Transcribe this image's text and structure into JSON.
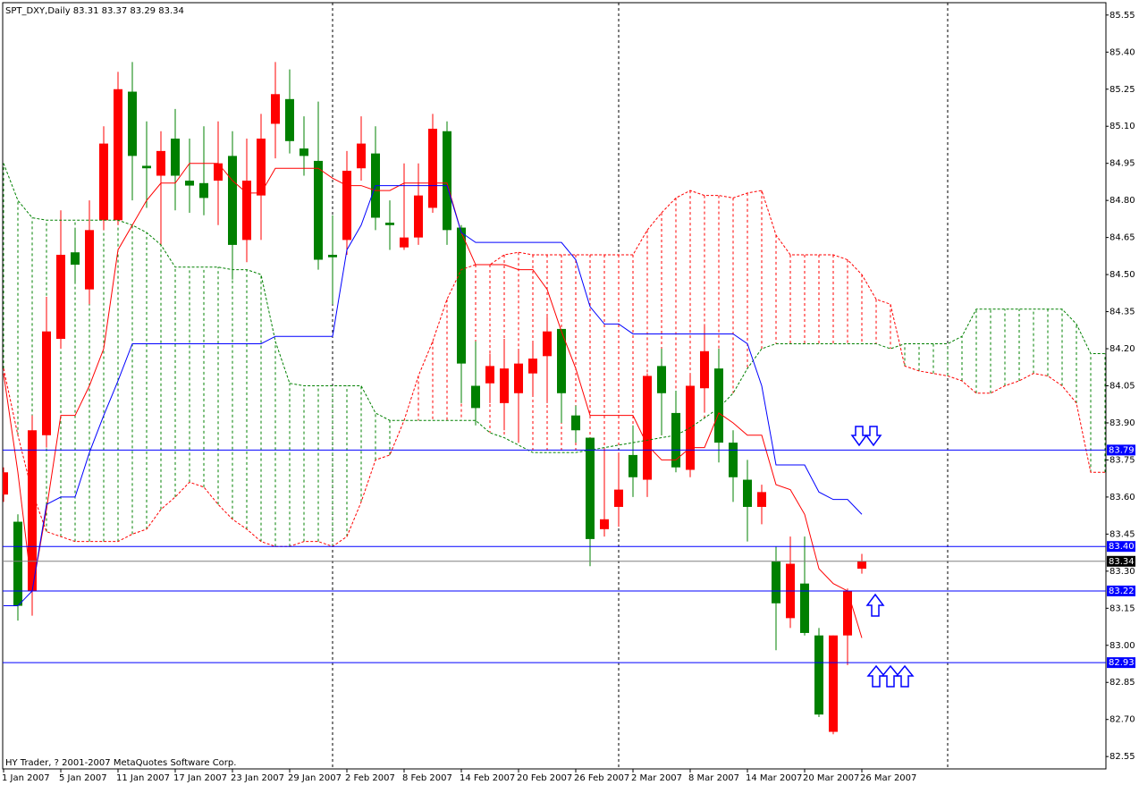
{
  "chart_data": {
    "type": "candlestick",
    "title": "SPT_DXY,Daily  83.31 83.37 83.29 83.34",
    "footer": "HY Trader, ? 2001-2007 MetaQuotes Software Corp.",
    "categories": [
      "1 Jan 2007",
      null,
      null,
      null,
      "5 Jan 2007",
      null,
      null,
      null,
      "11 Jan 2007",
      null,
      null,
      null,
      "17 Jan 2007",
      null,
      null,
      null,
      "23 Jan 2007",
      null,
      null,
      null,
      "29 Jan 2007",
      null,
      null,
      null,
      "2 Feb 2007",
      null,
      null,
      null,
      "8 Feb 2007",
      null,
      null,
      null,
      "14 Feb 2007",
      null,
      null,
      null,
      "20 Feb 2007",
      null,
      null,
      null,
      "26 Feb 2007",
      null,
      null,
      null,
      "2 Mar 2007",
      null,
      null,
      null,
      "8 Mar 2007",
      null,
      null,
      null,
      "14 Mar 2007",
      null,
      null,
      null,
      "20 Mar 2007",
      null,
      null,
      null,
      "26 Mar 2007",
      null,
      null,
      null,
      null,
      null,
      null,
      null,
      null,
      null,
      null,
      null,
      null,
      null,
      null,
      null,
      null,
      null
    ],
    "open": [
      83.61,
      83.5,
      83.22,
      83.85,
      84.24,
      84.59,
      84.44,
      84.72,
      84.72,
      85.24,
      84.94,
      84.9,
      85.05,
      84.88,
      84.87,
      84.88,
      84.98,
      84.64,
      84.82,
      85.11,
      85.21,
      85.01,
      84.96,
      84.58,
      84.64,
      84.93,
      84.99,
      84.71,
      84.61,
      84.65,
      84.77,
      85.08,
      84.69,
      84.05,
      84.06,
      83.98,
      84.02,
      84.1,
      84.17,
      84.28,
      83.93,
      83.84,
      83.47,
      83.56,
      83.77,
      83.67,
      84.13,
      83.94,
      83.71,
      84.04,
      84.12,
      83.82,
      83.67,
      83.56,
      83.34,
      83.11,
      83.25,
      83.04,
      82.65,
      83.04,
      83.31,
      null,
      null,
      null,
      null,
      null,
      null,
      null,
      null,
      null,
      null,
      null,
      null,
      null,
      null,
      null,
      null,
      null
    ],
    "high": [
      83.72,
      83.53,
      83.93,
      84.41,
      84.76,
      84.68,
      84.8,
      85.1,
      85.32,
      85.36,
      85.12,
      85.08,
      85.17,
      85.05,
      85.1,
      85.12,
      85.08,
      85.05,
      85.15,
      85.36,
      85.33,
      85.14,
      85.2,
      84.74,
      85.0,
      85.14,
      85.1,
      84.8,
      84.95,
      84.95,
      85.15,
      85.12,
      84.7,
      84.23,
      84.18,
      84.24,
      84.2,
      84.23,
      84.33,
      84.28,
      83.97,
      83.84,
      83.8,
      83.78,
      83.89,
      84.1,
      84.2,
      84.03,
      84.1,
      84.3,
      84.2,
      83.87,
      83.75,
      83.65,
      83.4,
      83.44,
      83.44,
      83.07,
      83.04,
      83.23,
      83.37,
      null,
      null,
      null,
      null,
      null,
      null,
      null,
      null,
      null,
      null,
      null,
      null,
      null,
      null,
      null,
      null,
      null
    ],
    "low": [
      83.58,
      83.1,
      83.12,
      83.8,
      84.2,
      84.47,
      84.38,
      84.68,
      84.7,
      84.8,
      84.77,
      84.62,
      84.76,
      84.75,
      84.74,
      84.7,
      84.48,
      84.55,
      84.64,
      84.97,
      84.99,
      84.9,
      84.52,
      84.38,
      84.58,
      84.88,
      84.68,
      84.6,
      84.6,
      84.62,
      84.75,
      84.62,
      83.98,
      83.89,
      83.98,
      83.87,
      83.82,
      84.01,
      83.98,
      83.9,
      83.82,
      83.32,
      83.44,
      83.48,
      83.6,
      83.6,
      83.85,
      83.7,
      83.68,
      83.95,
      83.74,
      83.58,
      83.42,
      83.49,
      82.98,
      83.07,
      83.04,
      82.71,
      82.64,
      82.92,
      83.29,
      null,
      null,
      null,
      null,
      null,
      null,
      null,
      null,
      null,
      null,
      null,
      null,
      null,
      null,
      null,
      null,
      null
    ],
    "close": [
      83.7,
      83.16,
      83.87,
      84.27,
      84.58,
      84.54,
      84.68,
      85.03,
      85.25,
      84.98,
      84.93,
      85.0,
      84.9,
      84.86,
      84.81,
      84.95,
      84.62,
      84.88,
      85.05,
      85.23,
      85.04,
      84.98,
      84.56,
      84.57,
      84.92,
      85.03,
      84.73,
      84.7,
      84.65,
      84.82,
      85.09,
      84.68,
      84.14,
      83.96,
      84.13,
      84.12,
      84.14,
      84.16,
      84.27,
      84.02,
      83.87,
      83.43,
      83.51,
      83.63,
      83.68,
      84.09,
      84.02,
      83.72,
      84.05,
      84.19,
      83.82,
      83.68,
      83.56,
      83.62,
      83.17,
      83.33,
      83.05,
      82.72,
      83.04,
      83.22,
      83.34,
      null,
      null,
      null,
      null,
      null,
      null,
      null,
      null,
      null,
      null,
      null,
      null,
      null,
      null,
      null,
      null,
      null
    ],
    "up_color": "#ff0000",
    "down_color": "#008000",
    "lines": [
      {
        "color": "#ff0000",
        "dashed": true,
        "cloud": true,
        "values": [
          84.12,
          83.85,
          83.62,
          83.46,
          83.44,
          83.42,
          83.42,
          83.42,
          83.42,
          83.45,
          83.47,
          83.55,
          83.6,
          83.66,
          83.64,
          83.57,
          83.51,
          83.47,
          83.42,
          83.4,
          83.4,
          83.42,
          83.42,
          83.4,
          83.44,
          83.58,
          83.75,
          83.77,
          83.91,
          84.09,
          84.23,
          84.4,
          84.52,
          84.54,
          84.54,
          84.58,
          84.59,
          84.58,
          84.58,
          84.58,
          84.58,
          84.58,
          84.58,
          84.58,
          84.58,
          84.68,
          84.75,
          84.81,
          84.84,
          84.82,
          84.82,
          84.81,
          84.83,
          84.84,
          84.66,
          84.58,
          84.58,
          84.58,
          84.58,
          84.56,
          84.5,
          84.4,
          84.38,
          84.13,
          84.11,
          84.1,
          84.09,
          84.07,
          84.02,
          84.02,
          84.05,
          84.07,
          84.1,
          84.09,
          84.05,
          83.98,
          83.7,
          83.7
        ]
      },
      {
        "color": "#008000",
        "dashed": true,
        "cloud": true,
        "values": [
          84.95,
          84.8,
          84.73,
          84.72,
          84.72,
          84.72,
          84.72,
          84.72,
          84.72,
          84.7,
          84.67,
          84.62,
          84.53,
          84.53,
          84.53,
          84.53,
          84.52,
          84.52,
          84.5,
          84.23,
          84.06,
          84.05,
          84.05,
          84.05,
          84.05,
          84.05,
          83.94,
          83.91,
          83.91,
          83.91,
          83.91,
          83.91,
          83.91,
          83.91,
          83.86,
          83.84,
          83.81,
          83.78,
          83.78,
          83.78,
          83.78,
          83.79,
          83.8,
          83.81,
          83.82,
          83.83,
          83.84,
          83.85,
          83.88,
          83.92,
          83.96,
          84.02,
          84.12,
          84.2,
          84.22,
          84.22,
          84.22,
          84.22,
          84.22,
          84.22,
          84.22,
          84.22,
          84.2,
          84.22,
          84.22,
          84.22,
          84.22,
          84.25,
          84.36,
          84.36,
          84.36,
          84.36,
          84.36,
          84.36,
          84.36,
          84.3,
          84.18,
          84.18
        ]
      },
      {
        "color": "#ff0000",
        "dashed": false,
        "cloud": false,
        "values": [
          84.1,
          83.7,
          83.22,
          83.55,
          83.93,
          83.93,
          84.05,
          84.2,
          84.6,
          84.7,
          84.8,
          84.87,
          84.87,
          84.95,
          84.95,
          84.95,
          84.88,
          84.83,
          84.83,
          84.93,
          84.93,
          84.93,
          84.93,
          84.89,
          84.86,
          84.86,
          84.84,
          84.84,
          84.87,
          84.87,
          84.87,
          84.87,
          84.67,
          84.54,
          84.54,
          84.54,
          84.52,
          84.52,
          84.44,
          84.27,
          84.12,
          83.93,
          83.93,
          83.93,
          83.93,
          83.81,
          83.75,
          83.75,
          83.8,
          83.8,
          83.94,
          83.9,
          83.85,
          83.85,
          83.65,
          83.63,
          83.53,
          83.31,
          83.25,
          83.22,
          83.03,
          null,
          null,
          null,
          null,
          null,
          null,
          null,
          null,
          null,
          null,
          null,
          null,
          null,
          null,
          null,
          null,
          null
        ]
      },
      {
        "color": "#0000ff",
        "dashed": false,
        "cloud": false,
        "values": [
          83.16,
          83.16,
          83.22,
          83.57,
          83.6,
          83.6,
          83.78,
          83.93,
          84.07,
          84.22,
          84.22,
          84.22,
          84.22,
          84.22,
          84.22,
          84.22,
          84.22,
          84.22,
          84.22,
          84.25,
          84.25,
          84.25,
          84.25,
          84.25,
          84.6,
          84.7,
          84.86,
          84.86,
          84.86,
          84.86,
          84.86,
          84.86,
          84.67,
          84.63,
          84.63,
          84.63,
          84.63,
          84.63,
          84.63,
          84.63,
          84.56,
          84.37,
          84.3,
          84.3,
          84.26,
          84.26,
          84.26,
          84.26,
          84.26,
          84.26,
          84.26,
          84.26,
          84.22,
          84.05,
          83.73,
          83.73,
          83.73,
          83.62,
          83.59,
          83.59,
          83.53,
          null,
          null,
          null,
          null,
          null,
          null,
          null,
          null,
          null,
          null,
          null,
          null,
          null,
          null,
          null,
          null,
          null
        ]
      }
    ],
    "levels": [
      83.79,
      {
        "value": 83.4,
        "label": "83.40"
      },
      83.22,
      82.93
    ],
    "level_color": "#0000ff",
    "price": 83.34,
    "ylim": [
      82.5,
      85.6
    ],
    "yticks": [
      85.55,
      {
        "value": 85.4,
        "label": "85.40"
      },
      85.25,
      {
        "value": 85.1,
        "label": "85.10"
      },
      84.95,
      {
        "value": 84.8,
        "label": "84.80"
      },
      84.65,
      {
        "value": 84.5,
        "label": "84.50"
      },
      84.35,
      {
        "value": 84.2,
        "label": "84.20"
      },
      84.05,
      {
        "value": 83.9,
        "label": "83.90"
      },
      83.75,
      {
        "value": 83.6,
        "label": "83.60"
      },
      83.45,
      {
        "value": 83.3,
        "label": "83.30"
      },
      83.15,
      {
        "value": 83,
        "label": "83.00"
      },
      82.85,
      {
        "value": 82.7,
        "label": "82.70"
      },
      82.55
    ]
  }
}
